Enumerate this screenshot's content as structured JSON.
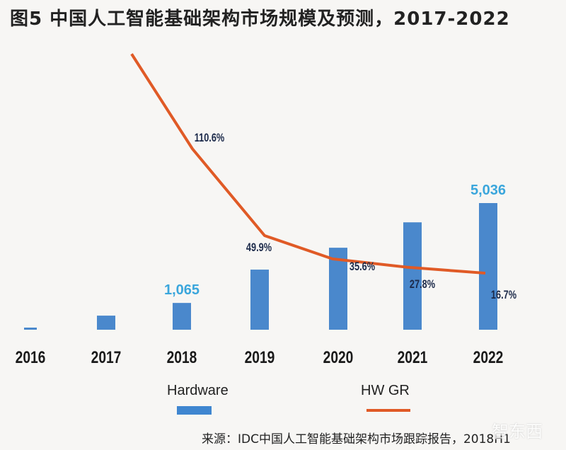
{
  "chart_data": {
    "type": "bar+line",
    "title": "图5 中国人工智能基础架构市场规模及预测，2017-2022",
    "categories": [
      "2016",
      "2017",
      "2018",
      "2019",
      "2020",
      "2021",
      "2022"
    ],
    "series": [
      {
        "name": "Hardware",
        "type": "bar",
        "color": "#4a88cc",
        "values": [
          60,
          560,
          1065,
          2390,
          3260,
          4270,
          5036
        ],
        "data_labels": [
          "",
          "",
          "1,065",
          "",
          "",
          "",
          "5,036"
        ]
      },
      {
        "name": "HW GR",
        "type": "line",
        "color": "#e05a26",
        "unit": "%",
        "values": [
          null,
          177,
          110.6,
          49.9,
          35.6,
          27.8,
          16.7
        ],
        "data_labels": [
          "",
          "",
          "110.6%",
          "49.9%",
          "35.6%",
          "27.8%",
          "16.7%"
        ]
      }
    ],
    "xlabel": "",
    "ylabel": "",
    "legend_position": "bottom",
    "grid": false
  },
  "legend": {
    "hardware": "Hardware",
    "hwgr": "HW GR"
  },
  "source": "来源：IDC中国人工智能基础架构市场跟踪报告，2018H1",
  "watermark": "智东西"
}
